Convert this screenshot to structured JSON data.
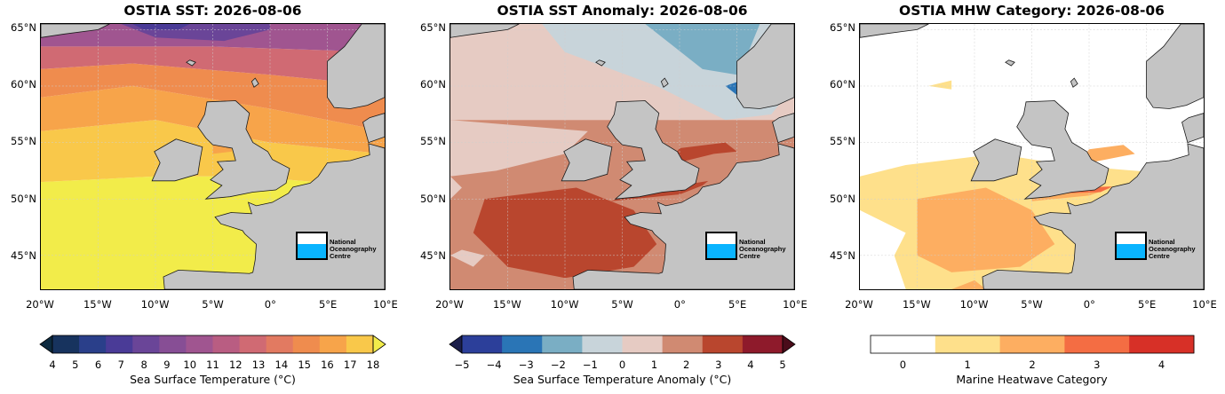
{
  "panels": [
    {
      "id": "sst",
      "title": "OSTIA SST: 2026-08-06",
      "colorbar_label": "Sea Surface Temperature (°C)",
      "colorbar_ticks": [
        "4",
        "5",
        "6",
        "7",
        "8",
        "9",
        "10",
        "11",
        "12",
        "13",
        "14",
        "15",
        "16",
        "17",
        "18"
      ],
      "colorbar_colors": [
        "#0d2a3f",
        "#17335e",
        "#2a3f8a",
        "#4a3b97",
        "#6a4598",
        "#874e95",
        "#a05590",
        "#b95d82",
        "#d06a73",
        "#e27a61",
        "#ef8c4e",
        "#f7a44a",
        "#f9c84a",
        "#f2ec4a"
      ],
      "extend": "both"
    },
    {
      "id": "anomaly",
      "title": "OSTIA SST Anomaly: 2026-08-06",
      "colorbar_label": "Sea Surface Temperature Anomaly (°C)",
      "colorbar_ticks": [
        "−5",
        "−4",
        "−3",
        "−2",
        "−1",
        "0",
        "1",
        "2",
        "3",
        "4",
        "5"
      ],
      "colorbar_colors": [
        "#1b1e4a",
        "#2c3f9a",
        "#2a75b6",
        "#7aaec4",
        "#c8d4da",
        "#e6cbc3",
        "#d08a72",
        "#b9462e",
        "#8e1a2b",
        "#4a0c1a"
      ],
      "extend": "both"
    },
    {
      "id": "mhw",
      "title": "OSTIA MHW Category: 2026-08-06",
      "colorbar_label": "Marine Heatwave Category",
      "colorbar_ticks": [
        "0",
        "1",
        "2",
        "3",
        "4"
      ],
      "colorbar_colors": [
        "#ffffff",
        "#fee08b",
        "#fdae61",
        "#f46d43",
        "#d73027"
      ],
      "extend": "neither"
    }
  ],
  "axes": {
    "lat_ticks": [
      "65°N",
      "60°N",
      "55°N",
      "50°N",
      "45°N"
    ],
    "lon_ticks": [
      "20°W",
      "15°W",
      "10°W",
      "5°W",
      "0°",
      "5°E",
      "10°E"
    ]
  },
  "logo": {
    "line1": "National",
    "line2": "Oceanography",
    "line3": "Centre"
  },
  "colors": {
    "land": "#c4c4c4",
    "coast": "#1a1a1a"
  }
}
